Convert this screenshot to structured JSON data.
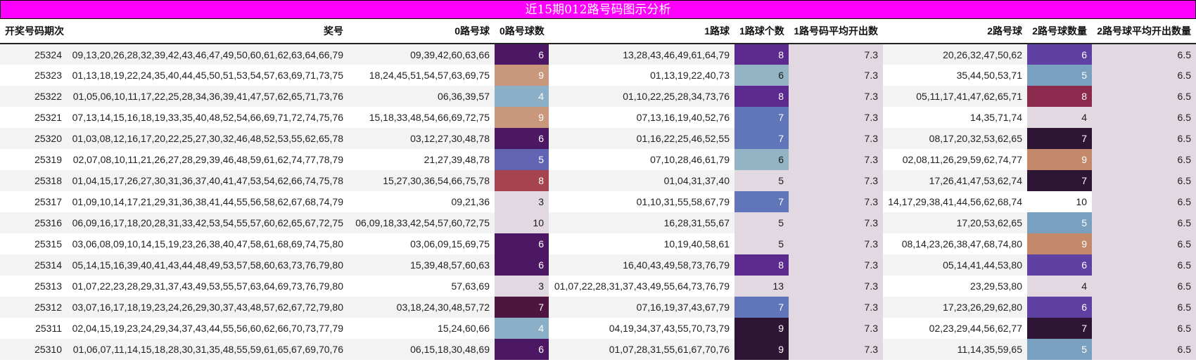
{
  "title": "近15期012路号码图示分析",
  "columns": [
    "开奖号码期次",
    "奖号",
    "0路号球",
    "0路号球数",
    "1路球",
    "1路球个数",
    "1路号码平均开出数",
    "2路号球",
    "2路号球数量",
    "2路号球平均开出数量"
  ],
  "colors": {
    "title_bg": "#ff00ff",
    "avg_bg": "#e2d8e2",
    "heat_scale": {
      "3": "#e2d8e2",
      "4": "#8aafc7",
      "5": "#6163b3",
      "6": "#4c1763",
      "7": "#4e1540",
      "8": "#a5444f",
      "9": "#c9977c",
      "10": "#e2d8e2"
    }
  },
  "rows": [
    {
      "period": "25324",
      "draw": "09,13,20,26,28,32,39,42,43,46,47,49,50,60,61,62,63,64,66,79",
      "r0": "09,39,42,60,63,66",
      "r0_count": "6",
      "r0_color": "#4c1763",
      "r1": "13,28,43,46,49,61,64,79",
      "r1_count": "8",
      "r1_color": "#5c2a8f",
      "r1_avg": "7.3",
      "r2": "20,26,32,47,50,62",
      "r2_count": "6",
      "r2_color": "#5e41a2",
      "r2_avg": "6.5"
    },
    {
      "period": "25323",
      "draw": "01,13,18,19,22,24,35,40,44,45,50,51,53,54,57,63,69,71,73,75",
      "r0": "18,24,45,51,54,57,63,69,75",
      "r0_count": "9",
      "r0_color": "#c9977c",
      "r1": "01,13,19,22,40,73",
      "r1_count": "6",
      "r1_color": "#94b4c6",
      "r1_avg": "7.3",
      "r2": "35,44,50,53,71",
      "r2_count": "5",
      "r2_color": "#7aa0c0",
      "r2_avg": "6.5"
    },
    {
      "period": "25322",
      "draw": "01,05,06,10,11,17,22,25,28,34,36,39,41,47,57,62,65,71,73,76",
      "r0": "06,36,39,57",
      "r0_count": "4",
      "r0_color": "#8aafc7",
      "r1": "01,10,22,25,28,34,73,76",
      "r1_count": "8",
      "r1_color": "#5c2a8f",
      "r1_avg": "7.3",
      "r2": "05,11,17,41,47,62,65,71",
      "r2_count": "8",
      "r2_color": "#8b2a4c",
      "r2_avg": "6.5"
    },
    {
      "period": "25321",
      "draw": "07,13,14,15,16,18,19,33,35,40,48,52,54,66,69,71,72,74,75,76",
      "r0": "15,18,33,48,54,66,69,72,75",
      "r0_count": "9",
      "r0_color": "#c9977c",
      "r1": "07,13,16,19,40,52,76",
      "r1_count": "7",
      "r1_color": "#6176ba",
      "r1_avg": "7.3",
      "r2": "14,35,71,74",
      "r2_count": "4",
      "r2_color": "#e2d8e2",
      "r2_avg": "6.5"
    },
    {
      "period": "25320",
      "draw": "01,03,08,12,16,17,20,22,25,27,30,32,46,48,52,53,55,62,65,78",
      "r0": "03,12,27,30,48,78",
      "r0_count": "6",
      "r0_color": "#4c1763",
      "r1": "01,16,22,25,46,52,55",
      "r1_count": "7",
      "r1_color": "#6176ba",
      "r1_avg": "7.3",
      "r2": "08,17,20,32,53,62,65",
      "r2_count": "7",
      "r2_color": "#2f1535",
      "r2_avg": "6.5"
    },
    {
      "period": "25319",
      "draw": "02,07,08,10,11,21,26,27,28,29,39,46,48,59,61,62,74,77,78,79",
      "r0": "21,27,39,48,78",
      "r0_count": "5",
      "r0_color": "#6163b3",
      "r1": "07,10,28,46,61,79",
      "r1_count": "6",
      "r1_color": "#94b4c6",
      "r1_avg": "7.3",
      "r2": "02,08,11,26,29,59,62,74,77",
      "r2_count": "9",
      "r2_color": "#c4896b",
      "r2_avg": "6.5"
    },
    {
      "period": "25318",
      "draw": "01,04,15,17,26,27,30,31,36,37,40,41,47,53,54,62,66,74,75,78",
      "r0": "15,27,30,36,54,66,75,78",
      "r0_count": "8",
      "r0_color": "#a5444f",
      "r1": "01,04,31,37,40",
      "r1_count": "5",
      "r1_color": "#e2d8e2",
      "r1_avg": "7.3",
      "r2": "17,26,41,47,53,62,74",
      "r2_count": "7",
      "r2_color": "#2f1535",
      "r2_avg": "6.5"
    },
    {
      "period": "25317",
      "draw": "01,09,10,14,17,21,29,31,36,38,41,44,55,56,58,62,67,68,74,79",
      "r0": "09,21,36",
      "r0_count": "3",
      "r0_color": "#e2d8e2",
      "r1": "01,10,31,55,58,67,79",
      "r1_count": "7",
      "r1_color": "#6176ba",
      "r1_avg": "7.3",
      "r2": "14,17,29,38,41,44,56,62,68,74",
      "r2_count": "10",
      "r2_color": "#ffffff",
      "r2_avg": "6.5"
    },
    {
      "period": "25316",
      "draw": "06,09,16,17,18,20,28,31,33,42,53,54,55,57,60,62,65,67,72,75",
      "r0": "06,09,18,33,42,54,57,60,72,75",
      "r0_count": "10",
      "r0_color": "#e2d8e2",
      "r1": "16,28,31,55,67",
      "r1_count": "5",
      "r1_color": "#e2d8e2",
      "r1_avg": "7.3",
      "r2": "17,20,53,62,65",
      "r2_count": "5",
      "r2_color": "#7aa0c0",
      "r2_avg": "6.5"
    },
    {
      "period": "25315",
      "draw": "03,06,08,09,10,14,15,19,23,26,38,40,47,58,61,68,69,74,75,80",
      "r0": "03,06,09,15,69,75",
      "r0_count": "6",
      "r0_color": "#4c1763",
      "r1": "10,19,40,58,61",
      "r1_count": "5",
      "r1_color": "#e2d8e2",
      "r1_avg": "7.3",
      "r2": "08,14,23,26,38,47,68,74,80",
      "r2_count": "9",
      "r2_color": "#c4896b",
      "r2_avg": "6.5"
    },
    {
      "period": "25314",
      "draw": "05,14,15,16,39,40,41,43,44,48,49,53,57,58,60,63,73,76,79,80",
      "r0": "15,39,48,57,60,63",
      "r0_count": "6",
      "r0_color": "#4c1763",
      "r1": "16,40,43,49,58,73,76,79",
      "r1_count": "8",
      "r1_color": "#5c2a8f",
      "r1_avg": "7.3",
      "r2": "05,14,41,44,53,80",
      "r2_count": "6",
      "r2_color": "#5e41a2",
      "r2_avg": "6.5"
    },
    {
      "period": "25313",
      "draw": "01,07,22,23,28,29,31,37,43,49,53,55,57,63,64,69,73,76,79,80",
      "r0": "57,63,69",
      "r0_count": "3",
      "r0_color": "#e2d8e2",
      "r1": "01,07,22,28,31,37,43,49,55,64,73,76,79",
      "r1_count": "13",
      "r1_color": "#e2d8e2",
      "r1_avg": "7.3",
      "r2": "23,29,53,80",
      "r2_count": "4",
      "r2_color": "#e2d8e2",
      "r2_avg": "6.5"
    },
    {
      "period": "25312",
      "draw": "03,07,16,17,18,19,23,24,26,29,30,37,43,48,57,62,67,72,79,80",
      "r0": "03,18,24,30,48,57,72",
      "r0_count": "7",
      "r0_color": "#4e1540",
      "r1": "07,16,19,37,43,67,79",
      "r1_count": "7",
      "r1_color": "#6176ba",
      "r1_avg": "7.3",
      "r2": "17,23,26,29,62,80",
      "r2_count": "6",
      "r2_color": "#5e41a2",
      "r2_avg": "6.5"
    },
    {
      "period": "25311",
      "draw": "02,04,15,19,23,24,29,34,37,43,44,55,56,60,62,66,70,73,77,79",
      "r0": "15,24,60,66",
      "r0_count": "4",
      "r0_color": "#8aafc7",
      "r1": "04,19,34,37,43,55,70,73,79",
      "r1_count": "9",
      "r1_color": "#2f1535",
      "r1_avg": "7.3",
      "r2": "02,23,29,44,56,62,77",
      "r2_count": "7",
      "r2_color": "#2f1535",
      "r2_avg": "6.5"
    },
    {
      "period": "25310",
      "draw": "01,06,07,11,14,15,18,28,30,31,35,48,55,59,61,65,67,69,70,76",
      "r0": "06,15,18,30,48,69",
      "r0_count": "6",
      "r0_color": "#4c1763",
      "r1": "01,07,28,31,55,61,67,70,76",
      "r1_count": "9",
      "r1_color": "#2f1535",
      "r1_avg": "7.3",
      "r2": "11,14,35,59,65",
      "r2_count": "5",
      "r2_color": "#7aa0c0",
      "r2_avg": "6.5"
    }
  ]
}
